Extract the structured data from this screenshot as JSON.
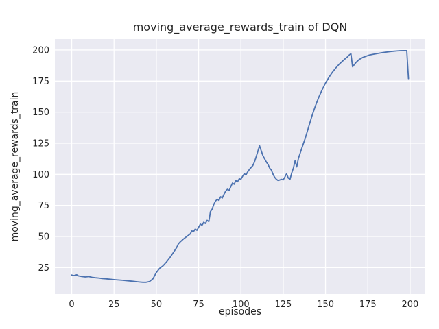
{
  "chart_data": {
    "type": "line",
    "title": "moving_average_rewards_train of DQN",
    "xlabel": "episodes",
    "ylabel": "moving_average_rewards_train",
    "xlim": [
      -9.95,
      208.95
    ],
    "ylim": [
      3.7,
      208.8
    ],
    "xticks": [
      0,
      25,
      50,
      75,
      100,
      125,
      150,
      175,
      200
    ],
    "yticks": [
      25,
      50,
      75,
      100,
      125,
      150,
      175,
      200
    ],
    "grid": true,
    "legend": "none",
    "line_color": "#4c72b0",
    "axes_background": "#eaeaf2",
    "figure_background": "#ffffff",
    "grid_color": "#ffffff",
    "tick_label_color": "#262626",
    "series": [
      {
        "name": "moving_average_rewards_train",
        "points": [
          [
            0,
            19.0
          ],
          [
            1,
            18.6
          ],
          [
            2,
            18.8
          ],
          [
            3,
            19.2
          ],
          [
            4,
            18.3
          ],
          [
            6,
            17.8
          ],
          [
            8,
            17.5
          ],
          [
            10,
            17.8
          ],
          [
            12,
            17.2
          ],
          [
            14,
            16.8
          ],
          [
            16,
            16.6
          ],
          [
            18,
            16.2
          ],
          [
            20,
            16.0
          ],
          [
            22,
            15.7
          ],
          [
            24,
            15.5
          ],
          [
            26,
            15.2
          ],
          [
            28,
            15.0
          ],
          [
            30,
            14.8
          ],
          [
            32,
            14.5
          ],
          [
            34,
            14.3
          ],
          [
            36,
            14.0
          ],
          [
            38,
            13.7
          ],
          [
            40,
            13.4
          ],
          [
            42,
            13.2
          ],
          [
            44,
            13.2
          ],
          [
            46,
            13.8
          ],
          [
            48,
            16.0
          ],
          [
            50,
            21.0
          ],
          [
            52,
            24.5
          ],
          [
            53,
            25.5
          ],
          [
            54,
            26.5
          ],
          [
            56,
            29.5
          ],
          [
            58,
            33.0
          ],
          [
            60,
            37.0
          ],
          [
            62,
            41.0
          ],
          [
            63,
            44.0
          ],
          [
            64,
            45.5
          ],
          [
            66,
            48.0
          ],
          [
            68,
            50.0
          ],
          [
            70,
            52.0
          ],
          [
            71,
            54.5
          ],
          [
            72,
            54.0
          ],
          [
            73,
            56.0
          ],
          [
            74,
            55.0
          ],
          [
            75,
            57.5
          ],
          [
            76,
            60.0
          ],
          [
            77,
            59.0
          ],
          [
            78,
            61.5
          ],
          [
            79,
            60.5
          ],
          [
            80,
            63.0
          ],
          [
            81,
            62.0
          ],
          [
            82,
            70.0
          ],
          [
            83,
            72.0
          ],
          [
            84,
            76.0
          ],
          [
            85,
            78.5
          ],
          [
            86,
            80.0
          ],
          [
            87,
            79.0
          ],
          [
            88,
            82.0
          ],
          [
            89,
            81.0
          ],
          [
            90,
            84.0
          ],
          [
            91,
            86.5
          ],
          [
            92,
            88.0
          ],
          [
            93,
            87.0
          ],
          [
            94,
            90.0
          ],
          [
            95,
            93.0
          ],
          [
            96,
            92.0
          ],
          [
            97,
            95.0
          ],
          [
            98,
            94.0
          ],
          [
            99,
            96.5
          ],
          [
            100,
            96.0
          ],
          [
            101,
            98.5
          ],
          [
            102,
            100.5
          ],
          [
            103,
            99.5
          ],
          [
            104,
            102.0
          ],
          [
            105,
            104.0
          ],
          [
            106,
            105.5
          ],
          [
            107,
            107.0
          ],
          [
            108,
            110.0
          ],
          [
            109,
            114.0
          ],
          [
            110,
            118.5
          ],
          [
            111,
            123.0
          ],
          [
            112,
            119.0
          ],
          [
            113,
            115.0
          ],
          [
            114,
            112.5
          ],
          [
            115,
            110.0
          ],
          [
            116,
            108.0
          ],
          [
            117,
            105.0
          ],
          [
            118,
            103.5
          ],
          [
            119,
            100.0
          ],
          [
            120,
            97.5
          ],
          [
            121,
            96.0
          ],
          [
            122,
            95.0
          ],
          [
            123,
            95.5
          ],
          [
            124,
            96.0
          ],
          [
            125,
            95.5
          ],
          [
            126,
            98.0
          ],
          [
            127,
            100.5
          ],
          [
            128,
            97.0
          ],
          [
            129,
            96.0
          ],
          [
            130,
            101.0
          ],
          [
            131,
            105.0
          ],
          [
            132,
            111.0
          ],
          [
            133,
            106.0
          ],
          [
            134,
            113.0
          ],
          [
            135,
            117.0
          ],
          [
            136,
            121.0
          ],
          [
            138,
            129.0
          ],
          [
            140,
            138.0
          ],
          [
            142,
            147.0
          ],
          [
            144,
            155.0
          ],
          [
            146,
            162.0
          ],
          [
            148,
            168.0
          ],
          [
            150,
            173.5
          ],
          [
            152,
            178.0
          ],
          [
            154,
            182.0
          ],
          [
            156,
            185.5
          ],
          [
            158,
            188.5
          ],
          [
            160,
            191.0
          ],
          [
            162,
            193.5
          ],
          [
            163,
            194.5
          ],
          [
            164,
            196.0
          ],
          [
            165,
            197.0
          ],
          [
            166,
            186.5
          ],
          [
            168,
            190.0
          ],
          [
            170,
            192.5
          ],
          [
            172,
            194.0
          ],
          [
            174,
            195.0
          ],
          [
            176,
            196.0
          ],
          [
            178,
            196.5
          ],
          [
            180,
            197.0
          ],
          [
            182,
            197.5
          ],
          [
            184,
            198.0
          ],
          [
            186,
            198.3
          ],
          [
            188,
            198.7
          ],
          [
            190,
            199.0
          ],
          [
            192,
            199.2
          ],
          [
            194,
            199.4
          ],
          [
            196,
            199.5
          ],
          [
            197,
            199.5
          ],
          [
            198,
            199.5
          ],
          [
            199,
            177.0
          ]
        ]
      }
    ]
  }
}
